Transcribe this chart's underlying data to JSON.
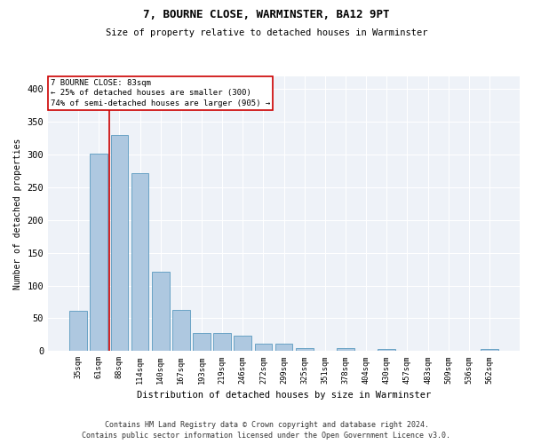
{
  "title": "7, BOURNE CLOSE, WARMINSTER, BA12 9PT",
  "subtitle": "Size of property relative to detached houses in Warminster",
  "xlabel": "Distribution of detached houses by size in Warminster",
  "ylabel": "Number of detached properties",
  "bar_categories": [
    "35sqm",
    "61sqm",
    "88sqm",
    "114sqm",
    "140sqm",
    "167sqm",
    "193sqm",
    "219sqm",
    "246sqm",
    "272sqm",
    "299sqm",
    "325sqm",
    "351sqm",
    "378sqm",
    "404sqm",
    "430sqm",
    "457sqm",
    "483sqm",
    "509sqm",
    "536sqm",
    "562sqm"
  ],
  "bar_values": [
    62,
    302,
    330,
    271,
    121,
    63,
    28,
    27,
    24,
    11,
    11,
    5,
    0,
    4,
    0,
    3,
    0,
    0,
    0,
    0,
    3
  ],
  "bar_color": "#aec8e0",
  "bar_edge_color": "#5a9abf",
  "vline_x": 1.5,
  "vline_color": "#cc0000",
  "annotation_box_text": "7 BOURNE CLOSE: 83sqm\n← 25% of detached houses are smaller (300)\n74% of semi-detached houses are larger (905) →",
  "annotation_box_color": "#cc0000",
  "ylim": [
    0,
    420
  ],
  "yticks": [
    0,
    50,
    100,
    150,
    200,
    250,
    300,
    350,
    400
  ],
  "background_color": "#eef2f8",
  "grid_color": "#ffffff",
  "footer_line1": "Contains HM Land Registry data © Crown copyright and database right 2024.",
  "footer_line2": "Contains public sector information licensed under the Open Government Licence v3.0."
}
